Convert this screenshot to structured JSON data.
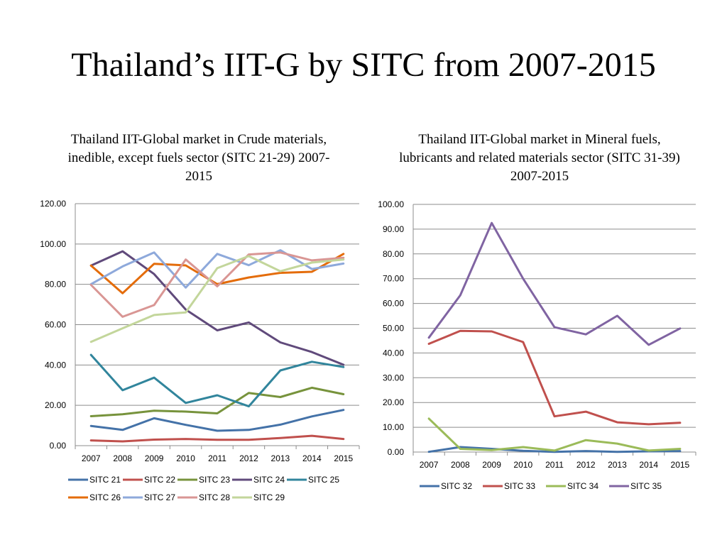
{
  "slide": {
    "title": "Thailand’s IIT-G by SITC from 2007-2015"
  },
  "chart_data": [
    {
      "type": "line",
      "title": "Thailand IIT-Global market in Crude materials, inedible, except fuels sector (SITC 21-29) 2007-2015",
      "x": [
        "2007",
        "2008",
        "2009",
        "2010",
        "2011",
        "2012",
        "2013",
        "2014",
        "2015"
      ],
      "ylim": [
        0,
        120
      ],
      "yticks": [
        "0.00",
        "20.00",
        "40.00",
        "60.00",
        "80.00",
        "100.00",
        "120.00"
      ],
      "grid": true,
      "legend": "bottom",
      "series": [
        {
          "name": "SITC 21",
          "color": "#4472A8",
          "values": [
            9.8,
            7.8,
            13.6,
            10.3,
            7.4,
            7.8,
            10.4,
            14.5,
            17.7
          ]
        },
        {
          "name": "SITC 22",
          "color": "#C0504D",
          "values": [
            2.6,
            2.1,
            3.0,
            3.3,
            2.9,
            2.9,
            3.8,
            4.9,
            3.3
          ]
        },
        {
          "name": "SITC 23",
          "color": "#77933C",
          "values": [
            14.6,
            15.6,
            17.3,
            16.9,
            16.0,
            26.1,
            24.1,
            28.7,
            25.5
          ]
        },
        {
          "name": "SITC 24",
          "color": "#604A7B",
          "values": [
            89.3,
            96.4,
            85.1,
            67.5,
            57.2,
            61.1,
            51.2,
            46.4,
            40.1
          ]
        },
        {
          "name": "SITC 25",
          "color": "#31859C",
          "values": [
            45.0,
            27.5,
            33.7,
            21.2,
            25.0,
            19.5,
            37.3,
            41.6,
            39.0
          ]
        },
        {
          "name": "SITC 26",
          "color": "#E46C0A",
          "values": [
            89.3,
            75.6,
            90.2,
            89.4,
            80.1,
            83.4,
            85.7,
            86.2,
            95.1
          ]
        },
        {
          "name": "SITC 27",
          "color": "#8EA9DB",
          "values": [
            80.1,
            88.9,
            95.8,
            78.4,
            95.1,
            89.5,
            96.9,
            87.6,
            90.3
          ]
        },
        {
          "name": "SITC 28",
          "color": "#D99694",
          "values": [
            79.7,
            63.9,
            69.7,
            92.3,
            79.0,
            94.8,
            95.8,
            91.9,
            93.2
          ]
        },
        {
          "name": "SITC 29",
          "color": "#C3D69B",
          "values": [
            51.5,
            58.2,
            64.8,
            66.1,
            88.0,
            94.0,
            86.5,
            90.8,
            92.3
          ]
        }
      ]
    },
    {
      "type": "line",
      "title": "Thailand IIT-Global market in Mineral fuels, lubricants and related materials sector (SITC 31-39) 2007-2015",
      "x": [
        "2007",
        "2008",
        "2009",
        "2010",
        "2011",
        "2012",
        "2013",
        "2014",
        "2015"
      ],
      "ylim": [
        0,
        100
      ],
      "yticks": [
        "0.00",
        "10.00",
        "20.00",
        "30.00",
        "40.00",
        "50.00",
        "60.00",
        "70.00",
        "80.00",
        "90.00",
        "100.00"
      ],
      "grid": true,
      "legend": "bottom",
      "series": [
        {
          "name": "SITC 32",
          "color": "#4472A8",
          "values": [
            0.1,
            2.0,
            1.3,
            0.5,
            0.1,
            0.4,
            0.1,
            0.3,
            0.4
          ]
        },
        {
          "name": "SITC 33",
          "color": "#C0504D",
          "values": [
            43.7,
            48.9,
            48.7,
            44.4,
            14.4,
            16.3,
            12.0,
            11.2,
            11.8
          ]
        },
        {
          "name": "SITC 34",
          "color": "#9BBB59",
          "values": [
            13.5,
            1.3,
            0.8,
            2.0,
            0.6,
            4.8,
            3.4,
            0.6,
            1.3
          ]
        },
        {
          "name": "SITC 35",
          "color": "#8064A2",
          "values": [
            46.2,
            63.3,
            92.5,
            70.0,
            50.4,
            47.5,
            55.0,
            43.3,
            49.9
          ]
        }
      ]
    }
  ]
}
